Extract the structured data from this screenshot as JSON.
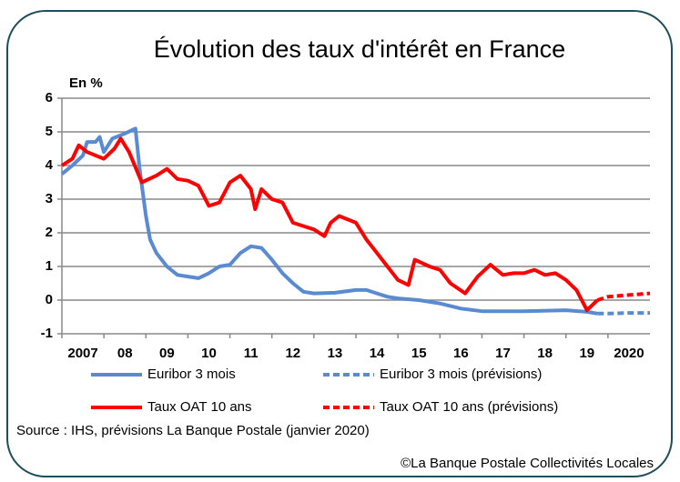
{
  "chart_data": {
    "type": "line",
    "title": "Évolution des taux d'intérêt en France",
    "y_label": "En %",
    "source": "Source : IHS, prévisions La Banque Postale (janvier 2020)",
    "credit": "©La Banque Postale Collectivités Locales",
    "xlim": [
      2007,
      2021
    ],
    "xticks": [
      {
        "value": 2007,
        "label": "2007"
      },
      {
        "value": 2008,
        "label": "08"
      },
      {
        "value": 2009,
        "label": "09"
      },
      {
        "value": 2010,
        "label": "10"
      },
      {
        "value": 2011,
        "label": "11"
      },
      {
        "value": 2012,
        "label": "12"
      },
      {
        "value": 2013,
        "label": "13"
      },
      {
        "value": 2014,
        "label": "14"
      },
      {
        "value": 2015,
        "label": "15"
      },
      {
        "value": 2016,
        "label": "16"
      },
      {
        "value": 2017,
        "label": "17"
      },
      {
        "value": 2018,
        "label": "18"
      },
      {
        "value": 2019,
        "label": "19"
      },
      {
        "value": 2020,
        "label": "2020"
      }
    ],
    "ylim": [
      -1,
      6
    ],
    "yticks": [
      -1,
      0,
      1,
      2,
      3,
      4,
      5,
      6
    ],
    "grid": true,
    "series": [
      {
        "name": "Euribor 3 mois",
        "color": "#5a8ad2",
        "dashed": false,
        "x": [
          2007.0,
          2007.25,
          2007.5,
          2007.6,
          2007.8,
          2007.9,
          2008.0,
          2008.2,
          2008.5,
          2008.75,
          2008.85,
          2009.0,
          2009.1,
          2009.25,
          2009.5,
          2009.75,
          2010.0,
          2010.25,
          2010.5,
          2010.75,
          2011.0,
          2011.25,
          2011.5,
          2011.75,
          2012.0,
          2012.25,
          2012.5,
          2012.75,
          2013.0,
          2013.5,
          2014.0,
          2014.25,
          2014.5,
          2014.75,
          2015.0,
          2015.5,
          2016.0,
          2016.5,
          2017.0,
          2018.0,
          2019.0,
          2019.5,
          2019.75
        ],
        "values": [
          3.75,
          4.0,
          4.3,
          4.7,
          4.7,
          4.85,
          4.4,
          4.8,
          4.95,
          5.1,
          3.9,
          2.5,
          1.8,
          1.4,
          1.0,
          0.75,
          0.7,
          0.65,
          0.8,
          1.0,
          1.05,
          1.4,
          1.6,
          1.55,
          1.2,
          0.8,
          0.5,
          0.25,
          0.2,
          0.22,
          0.3,
          0.3,
          0.2,
          0.1,
          0.05,
          0.0,
          -0.1,
          -0.25,
          -0.33,
          -0.33,
          -0.3,
          -0.35,
          -0.4
        ]
      },
      {
        "name": "Euribor 3 mois (prévisions)",
        "color": "#5a8ad2",
        "dashed": true,
        "x": [
          2019.75,
          2020.0,
          2020.5,
          2021.0
        ],
        "values": [
          -0.4,
          -0.4,
          -0.38,
          -0.38
        ]
      },
      {
        "name": "Taux OAT 10 ans",
        "color": "#ff0000",
        "dashed": false,
        "x": [
          2007.0,
          2007.25,
          2007.4,
          2007.6,
          2008.0,
          2008.25,
          2008.4,
          2008.6,
          2008.9,
          2009.25,
          2009.5,
          2009.75,
          2010.0,
          2010.25,
          2010.5,
          2010.75,
          2011.0,
          2011.25,
          2011.5,
          2011.6,
          2011.75,
          2012.0,
          2012.25,
          2012.5,
          2012.75,
          2013.0,
          2013.25,
          2013.4,
          2013.6,
          2014.0,
          2014.25,
          2014.5,
          2014.75,
          2015.0,
          2015.25,
          2015.4,
          2015.75,
          2016.0,
          2016.25,
          2016.6,
          2016.9,
          2017.2,
          2017.5,
          2017.75,
          2018.0,
          2018.25,
          2018.5,
          2018.75,
          2019.0,
          2019.25,
          2019.5,
          2019.75
        ],
        "values": [
          4.0,
          4.2,
          4.6,
          4.4,
          4.2,
          4.5,
          4.8,
          4.4,
          3.5,
          3.7,
          3.9,
          3.6,
          3.55,
          3.4,
          2.8,
          2.9,
          3.5,
          3.7,
          3.3,
          2.7,
          3.3,
          3.0,
          2.9,
          2.3,
          2.2,
          2.1,
          1.9,
          2.3,
          2.5,
          2.3,
          1.8,
          1.4,
          1.0,
          0.6,
          0.45,
          1.2,
          1.0,
          0.9,
          0.5,
          0.2,
          0.7,
          1.05,
          0.75,
          0.8,
          0.8,
          0.9,
          0.75,
          0.8,
          0.6,
          0.3,
          -0.3,
          0.0
        ]
      },
      {
        "name": "Taux OAT 10 ans (prévisions)",
        "color": "#ff0000",
        "dashed": true,
        "x": [
          2019.75,
          2020.0,
          2020.5,
          2021.0
        ],
        "values": [
          0.0,
          0.1,
          0.15,
          0.2
        ]
      }
    ]
  }
}
